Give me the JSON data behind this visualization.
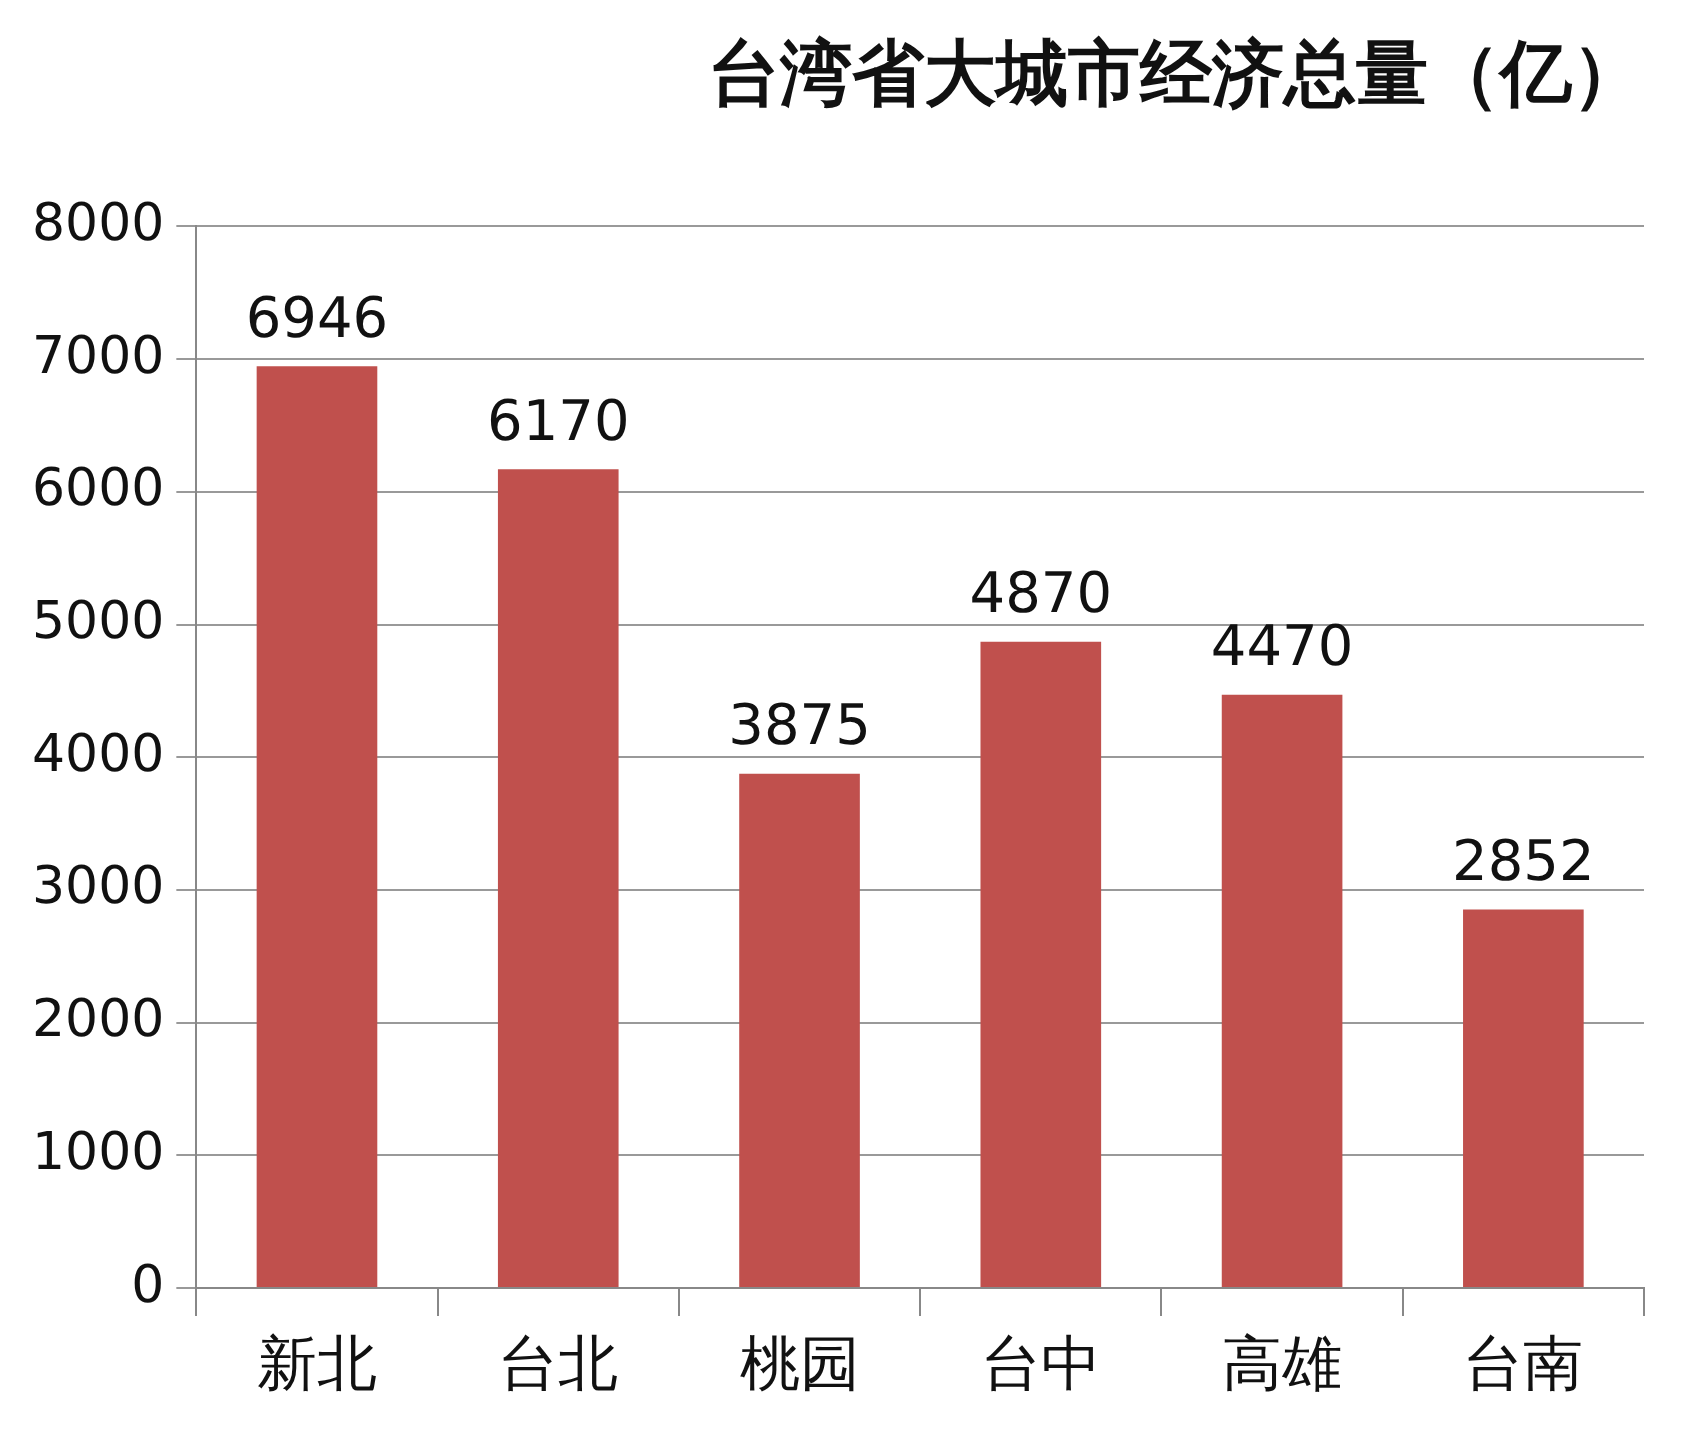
{
  "chart_data": {
    "type": "bar",
    "title": "台湾省大城市经济总量（亿）",
    "categories": [
      "新北",
      "台北",
      "桃园",
      "台中",
      "高雄",
      "台南"
    ],
    "values": [
      6946,
      6170,
      3875,
      4870,
      4470,
      2852
    ],
    "color": "#c0504d",
    "ylim": [
      0,
      8000
    ],
    "yticks": [
      0,
      1000,
      2000,
      3000,
      4000,
      5000,
      6000,
      7000,
      8000
    ],
    "grid": "y",
    "data_labels": true
  }
}
